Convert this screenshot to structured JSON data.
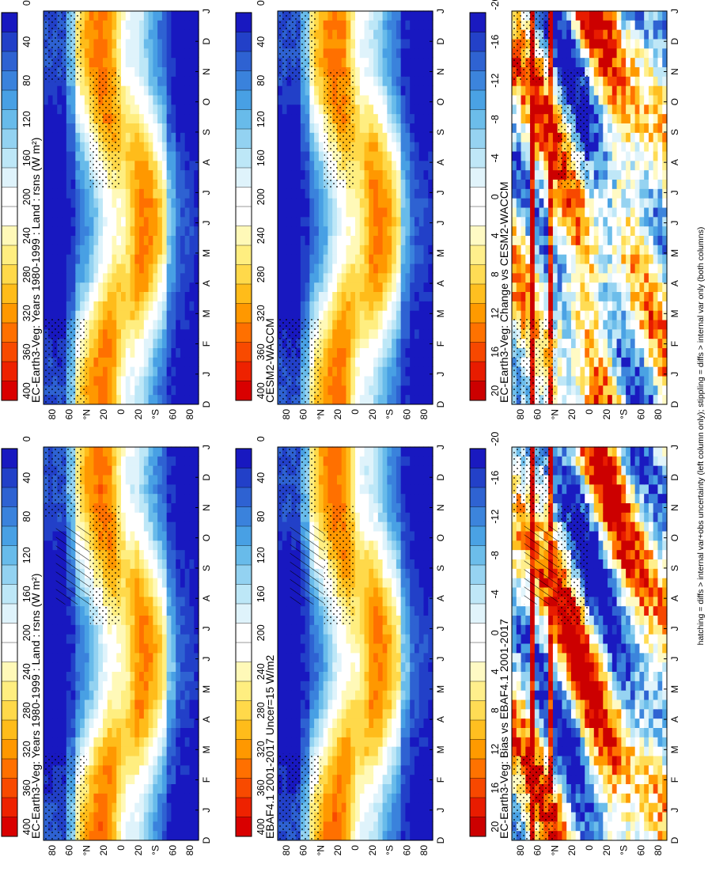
{
  "figure_caption": "hatching = diffs > internal var+obs uncertainty (left column only); stippling = diffs > internal var only (both columns)",
  "colors": {
    "abs_scale": [
      "#d90000",
      "#ee2200",
      "#f84a00",
      "#ff7000",
      "#ff9800",
      "#ffbc1a",
      "#ffd94a",
      "#ffee80",
      "#fff9b8",
      "#ffffff",
      "#ffffff",
      "#dff3fb",
      "#bde7f7",
      "#93d2f1",
      "#68bbea",
      "#48a0e4",
      "#3a82dc",
      "#2e62d2",
      "#2240c8",
      "#1818c0"
    ],
    "diff_scale": [
      "#cc0000",
      "#e81c00",
      "#f74800",
      "#ff7200",
      "#ff9a00",
      "#ffbf20",
      "#ffdc55",
      "#ffef8c",
      "#fffac4",
      "#ffffff",
      "#ffffff",
      "#e1f4fb",
      "#bfe7f7",
      "#96d3f1",
      "#6cbdea",
      "#4aa2e4",
      "#3c84dc",
      "#2f63d2",
      "#2341c8",
      "#1a1ac0"
    ]
  },
  "chart_data": [
    {
      "type": "heatmap",
      "panel": "top-left",
      "title": "EC-Earth3-Veg: Years 1980-1999 : Land : rsns (W m²)",
      "x_ticks": [
        "D",
        "J",
        "F",
        "M",
        "A",
        "M",
        "J",
        "J",
        "A",
        "S",
        "O",
        "N",
        "D",
        "J"
      ],
      "y_ticks": [
        "80",
        "60",
        "°N",
        "20",
        "0",
        "20",
        "°S",
        "60",
        "80"
      ],
      "lat_range": [
        -90,
        90
      ],
      "colorbar_labels": [
        "400",
        "360",
        "320",
        "280",
        "240",
        "200",
        "160",
        "120",
        "80",
        "40",
        "0"
      ],
      "colorbar_range": [
        0,
        400
      ],
      "field_kind": "abs",
      "hatching": true,
      "stippling": true
    },
    {
      "type": "heatmap",
      "panel": "top-right",
      "title": "EC-Earth3-Veg: Years 1980-1999 : Land : rsns (W m²)",
      "x_ticks": [
        "D",
        "J",
        "F",
        "M",
        "A",
        "M",
        "J",
        "J",
        "A",
        "S",
        "O",
        "N",
        "D",
        "J"
      ],
      "y_ticks": [
        "80",
        "60",
        "°N",
        "20",
        "0",
        "20",
        "°S",
        "60",
        "80"
      ],
      "lat_range": [
        -90,
        90
      ],
      "colorbar_labels": [
        "400",
        "360",
        "320",
        "280",
        "240",
        "200",
        "160",
        "120",
        "80",
        "40",
        "0"
      ],
      "colorbar_range": [
        0,
        400
      ],
      "field_kind": "abs",
      "hatching": false,
      "stippling": true
    },
    {
      "type": "heatmap",
      "panel": "middle-left",
      "title": "EBAF4.1 2001-2017 Uncer=15 W/m2",
      "x_ticks": [
        "D",
        "J",
        "F",
        "M",
        "A",
        "M",
        "J",
        "J",
        "A",
        "S",
        "O",
        "N",
        "D",
        "J"
      ],
      "y_ticks": [
        "80",
        "60",
        "°N",
        "20",
        "0",
        "20",
        "°S",
        "60",
        "80"
      ],
      "lat_range": [
        -90,
        90
      ],
      "colorbar_labels": [
        "400",
        "360",
        "320",
        "280",
        "240",
        "200",
        "160",
        "120",
        "80",
        "40",
        "0"
      ],
      "colorbar_range": [
        0,
        400
      ],
      "field_kind": "abs",
      "hatching": true,
      "stippling": true
    },
    {
      "type": "heatmap",
      "panel": "middle-right",
      "title": "CESM2-WACCM",
      "x_ticks": [
        "D",
        "J",
        "F",
        "M",
        "A",
        "M",
        "J",
        "J",
        "A",
        "S",
        "O",
        "N",
        "D",
        "J"
      ],
      "y_ticks": [
        "80",
        "60",
        "°N",
        "20",
        "0",
        "20",
        "°S",
        "60",
        "80"
      ],
      "lat_range": [
        -90,
        90
      ],
      "colorbar_labels": [
        "400",
        "360",
        "320",
        "280",
        "240",
        "200",
        "160",
        "120",
        "80",
        "40",
        "0"
      ],
      "colorbar_range": [
        0,
        400
      ],
      "field_kind": "abs",
      "hatching": false,
      "stippling": true
    },
    {
      "type": "heatmap",
      "panel": "bottom-left",
      "title": "EC-Earth3-Veg: Bias vs EBAF4.1 2001-2017",
      "x_ticks": [
        "D",
        "J",
        "F",
        "M",
        "A",
        "M",
        "J",
        "J",
        "A",
        "S",
        "O",
        "N",
        "D",
        "J"
      ],
      "y_ticks": [
        "80",
        "60",
        "°N",
        "20",
        "0",
        "20",
        "°S",
        "60",
        "80"
      ],
      "lat_range": [
        -90,
        90
      ],
      "colorbar_labels": [
        "20",
        "16",
        "12",
        "8",
        "4",
        "0",
        "-4",
        "-8",
        "-12",
        "-16",
        "-20"
      ],
      "colorbar_range": [
        -20,
        20
      ],
      "field_kind": "bias",
      "hatching": true,
      "stippling": true
    },
    {
      "type": "heatmap",
      "panel": "bottom-right",
      "title": "EC-Earth3-Veg: Change vs CESM2-WACCM",
      "x_ticks": [
        "D",
        "J",
        "F",
        "M",
        "A",
        "M",
        "J",
        "J",
        "A",
        "S",
        "O",
        "N",
        "D",
        "J"
      ],
      "y_ticks": [
        "80",
        "60",
        "°N",
        "20",
        "0",
        "20",
        "°S",
        "60",
        "80"
      ],
      "lat_range": [
        -90,
        90
      ],
      "colorbar_labels": [
        "20",
        "16",
        "12",
        "8",
        "4",
        "0",
        "-4",
        "-8",
        "-12",
        "-16",
        "-20"
      ],
      "colorbar_range": [
        -20,
        20
      ],
      "field_kind": "change",
      "hatching": false,
      "stippling": true
    }
  ]
}
